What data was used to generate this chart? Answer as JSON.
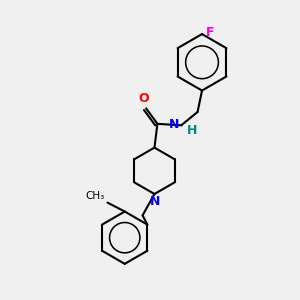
{
  "bg_color": "#f0f0f0",
  "bond_color": "#000000",
  "N_color": "#0000FF",
  "O_color": "#FF0000",
  "F_color": "#FF00CC",
  "H_color": "#008888",
  "line_width": 1.5,
  "figsize": [
    3.0,
    3.0
  ],
  "dpi": 100,
  "xlim": [
    0,
    10
  ],
  "ylim": [
    0,
    10
  ]
}
